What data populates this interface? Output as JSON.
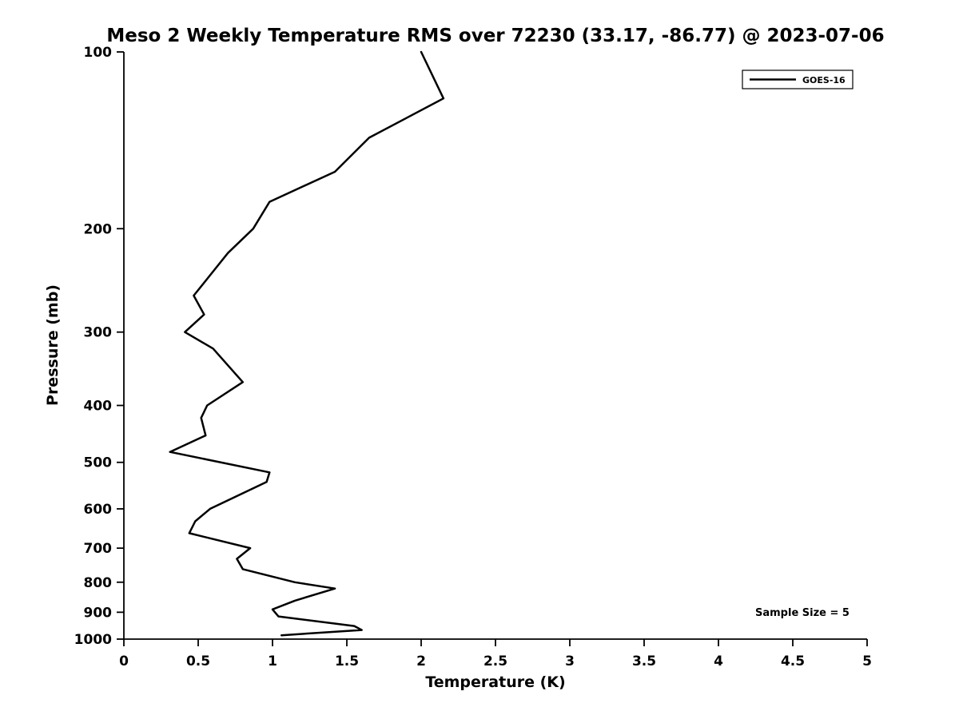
{
  "chart_data": {
    "type": "line",
    "title": "Meso 2 Weekly Temperature RMS over 72230 (33.17, -86.77) @ 2023-07-06",
    "xlabel": "Temperature (K)",
    "ylabel": "Pressure (mb)",
    "xlim": [
      0,
      5
    ],
    "ylim": [
      100,
      1000
    ],
    "y_scale": "log",
    "y_inverted": true,
    "grid": false,
    "x_ticks": [
      0,
      0.5,
      1,
      1.5,
      2,
      2.5,
      3,
      3.5,
      4,
      4.5,
      5
    ],
    "x_tick_labels": [
      "0",
      "0.5",
      "1",
      "1.5",
      "2",
      "2.5",
      "3",
      "3.5",
      "4",
      "4.5",
      "5"
    ],
    "y_ticks": [
      100,
      200,
      300,
      400,
      500,
      600,
      700,
      800,
      900,
      1000
    ],
    "y_tick_labels": [
      "100",
      "200",
      "300",
      "400",
      "500",
      "600",
      "700",
      "800",
      "900",
      "1000"
    ],
    "legend": {
      "position": "top-right",
      "entries": [
        {
          "label": "GOES-16",
          "color": "#000000"
        }
      ]
    },
    "annotations": [
      {
        "text": "Sample Size = 5",
        "position": "bottom-right"
      }
    ],
    "series": [
      {
        "name": "GOES-16",
        "color": "#000000",
        "points_format": "[pressure_mb, rms_K]",
        "points": [
          [
            100,
            2.0
          ],
          [
            120,
            2.15
          ],
          [
            140,
            1.65
          ],
          [
            160,
            1.42
          ],
          [
            180,
            0.98
          ],
          [
            200,
            0.87
          ],
          [
            220,
            0.7
          ],
          [
            240,
            0.58
          ],
          [
            260,
            0.47
          ],
          [
            280,
            0.54
          ],
          [
            300,
            0.41
          ],
          [
            320,
            0.6
          ],
          [
            365,
            0.8
          ],
          [
            400,
            0.56
          ],
          [
            420,
            0.52
          ],
          [
            450,
            0.55
          ],
          [
            480,
            0.31
          ],
          [
            520,
            0.98
          ],
          [
            540,
            0.96
          ],
          [
            600,
            0.58
          ],
          [
            630,
            0.48
          ],
          [
            660,
            0.44
          ],
          [
            700,
            0.85
          ],
          [
            730,
            0.76
          ],
          [
            760,
            0.8
          ],
          [
            800,
            1.15
          ],
          [
            820,
            1.42
          ],
          [
            860,
            1.15
          ],
          [
            890,
            1.0
          ],
          [
            915,
            1.04
          ],
          [
            950,
            1.55
          ],
          [
            965,
            1.6
          ],
          [
            985,
            1.06
          ]
        ]
      }
    ]
  }
}
